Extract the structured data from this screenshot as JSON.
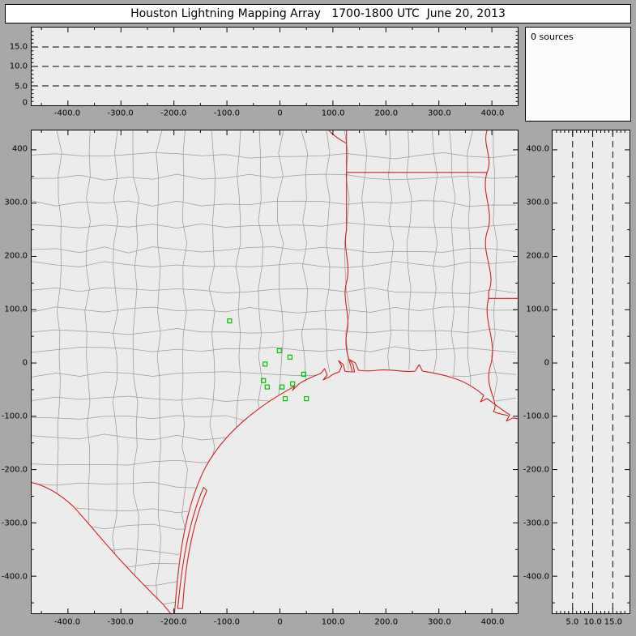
{
  "window": {
    "title": "Houston Lightning Mapping Array   1700-1800 UTC  June 20, 2013"
  },
  "status": {
    "sources": "0 sources"
  },
  "colors": {
    "background": "#a8a8a8",
    "panel": "#ececec",
    "histogram_panel": "#fcfcfc",
    "state_border": "#d02020",
    "county_line": "#9a9a9a",
    "station": "#00c000"
  },
  "chart_data": [
    {
      "id": "altitude_vs_east_west",
      "type": "line",
      "x_ticks": [
        {
          "km": -400,
          "label": "-400.0"
        },
        {
          "km": -300,
          "label": "-300.0"
        },
        {
          "km": -200,
          "label": "-200.0"
        },
        {
          "km": -100,
          "label": "-100.0"
        },
        {
          "km": 0,
          "label": "0"
        },
        {
          "km": 100,
          "label": "100.0"
        },
        {
          "km": 200,
          "label": "200.0"
        },
        {
          "km": 300,
          "label": "300.0"
        },
        {
          "km": 400,
          "label": "400.0"
        }
      ],
      "y_ticks": [
        {
          "km": 15,
          "label": "15.0"
        },
        {
          "km": 10,
          "label": "10.0"
        },
        {
          "km": 5,
          "label": "5.0"
        },
        {
          "km": 0,
          "label": "0"
        }
      ],
      "xlim_km": [
        -468,
        449
      ],
      "ylim_km": [
        0,
        20
      ],
      "dashed_gridlines_km": [
        5,
        10,
        15
      ],
      "series": []
    },
    {
      "id": "plan_view_map",
      "type": "scatter",
      "x_ticks": [
        {
          "km": -400,
          "label": "-400.0"
        },
        {
          "km": -300,
          "label": "-300.0"
        },
        {
          "km": -200,
          "label": "-200.0"
        },
        {
          "km": -100,
          "label": "-100.0"
        },
        {
          "km": 0,
          "label": "0"
        },
        {
          "km": 100,
          "label": "100.0"
        },
        {
          "km": 200,
          "label": "200.0"
        },
        {
          "km": 300,
          "label": "300.0"
        },
        {
          "km": 400,
          "label": "400.0"
        }
      ],
      "y_ticks": [
        {
          "km": 400,
          "label": "400"
        },
        {
          "km": 300,
          "label": "300.0"
        },
        {
          "km": 200,
          "label": "200.0"
        },
        {
          "km": 100,
          "label": "100.0"
        },
        {
          "km": 0,
          "label": "0"
        },
        {
          "km": -100,
          "label": "-100.0"
        },
        {
          "km": -200,
          "label": "-200.0"
        },
        {
          "km": -300,
          "label": "-300.0"
        },
        {
          "km": -400,
          "label": "-400.0"
        }
      ],
      "xlim_km": [
        -468,
        449
      ],
      "ylim_km": [
        -470,
        436
      ],
      "stations_km": [
        {
          "x": -95,
          "y": 79
        },
        {
          "x": -28,
          "y": -2
        },
        {
          "x": -1,
          "y": 23
        },
        {
          "x": 19,
          "y": 11
        },
        {
          "x": -31,
          "y": -33
        },
        {
          "x": -24,
          "y": -45
        },
        {
          "x": 4,
          "y": -45
        },
        {
          "x": 24,
          "y": -39
        },
        {
          "x": 45,
          "y": -21
        },
        {
          "x": 10,
          "y": -67
        },
        {
          "x": 50,
          "y": -67
        }
      ],
      "sources": []
    },
    {
      "id": "altitude_vs_north_south",
      "type": "line",
      "x_ticks": [
        {
          "km": 5,
          "label": "5.0"
        },
        {
          "km": 10,
          "label": "10.0"
        },
        {
          "km": 15,
          "label": "15.0"
        }
      ],
      "y_ticks": [
        {
          "km": 400,
          "label": "400.0"
        },
        {
          "km": 300,
          "label": "300.0"
        },
        {
          "km": 200,
          "label": "200.0"
        },
        {
          "km": 100,
          "label": "100.0"
        },
        {
          "km": 0,
          "label": "0"
        },
        {
          "km": -100,
          "label": "-100.0"
        },
        {
          "km": -200,
          "label": "-200.0"
        },
        {
          "km": -300,
          "label": "-300.0"
        },
        {
          "km": -400,
          "label": "-400.0"
        }
      ],
      "xlim_km": [
        0,
        19
      ],
      "ylim_km": [
        -470,
        436
      ],
      "dashed_gridlines_km": [
        5,
        10,
        15
      ],
      "series": []
    }
  ]
}
